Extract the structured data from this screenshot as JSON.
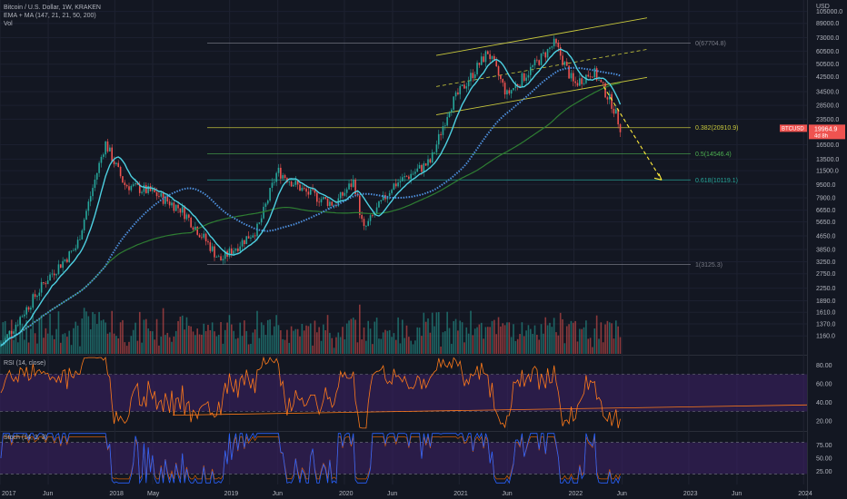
{
  "header": {
    "symbol": "Bitcoin / U.S. Dollar, 1W, KRAKEN",
    "indicators": "EMA + MA (147, 21, 21, 50, 200)",
    "volume": "Vol"
  },
  "price_axis": {
    "currency": "USD",
    "ticks": [
      "105000.0",
      "89000.0",
      "73000.0",
      "60500.0",
      "50500.0",
      "42500.0",
      "34500.0",
      "28500.0",
      "23500.0",
      "16500.0",
      "13500.0",
      "11500.0",
      "9500.0",
      "7900.0",
      "6650.0",
      "5650.0",
      "4650.0",
      "3850.0",
      "3250.0",
      "2750.0",
      "2250.0",
      "1890.0",
      "1610.0",
      "1370.0",
      "1160.0"
    ],
    "ticker_label": "BTCUSD",
    "last_price": "19964.9",
    "countdown": "4d 8h"
  },
  "fib_levels": [
    {
      "label": "0(67704.8)",
      "value": 67704.8,
      "color": "#787b86"
    },
    {
      "label": "0.382(20910.9)",
      "value": 20910.9,
      "color": "#c8c83c"
    },
    {
      "label": "0.5(14546.4)",
      "value": 14546.4,
      "color": "#4caf50"
    },
    {
      "label": "0.618(10119.1)",
      "value": 10119.1,
      "color": "#26a69a"
    },
    {
      "label": "1(3125.3)",
      "value": 3125.3,
      "color": "#787b86"
    }
  ],
  "rsi_panel": {
    "title": "RSI (14, close)",
    "ticks": [
      "80.00",
      "60.00",
      "40.00",
      "20.00"
    ]
  },
  "stoch_panel": {
    "title": "Stoch (14, 3, 3)",
    "ticks": [
      "75.00",
      "50.00",
      "25.00"
    ]
  },
  "time_axis": [
    "2017",
    "Jun",
    "2018",
    "May",
    "2019",
    "Jun",
    "2020",
    "Jun",
    "2021",
    "Jun",
    "2022",
    "Jun",
    "2023",
    "Jun",
    "2024"
  ],
  "colors": {
    "background": "#131722",
    "up": "#26a69a",
    "down": "#ef5350",
    "ema_fast": "#4dd0e1",
    "ma_dotted": "#4d8fdc",
    "ma_200": "#2e7d32",
    "rsi_line": "#ff7a1a",
    "rsi_band": "#3b1f63",
    "stoch_k": "#2962ff",
    "stoch_d": "#ff6d00",
    "channel": "#c8c83c",
    "projection": "#ffeb3b"
  },
  "chart_data": {
    "type": "candlestick",
    "title": "Bitcoin / U.S. Dollar, 1W, KRAKEN",
    "scale": "log",
    "y_unit": "USD",
    "ylim": [
      1000,
      120000
    ],
    "x_ticks": [
      "2017",
      "Jun",
      "2018",
      "May",
      "2019",
      "Jun",
      "2020",
      "Jun",
      "2021",
      "Jun",
      "2022",
      "Jun",
      "2023",
      "Jun",
      "2024"
    ],
    "price_path": [
      [
        "2017-01",
        1000
      ],
      [
        "2017-06",
        2600
      ],
      [
        "2017-09",
        4000
      ],
      [
        "2017-12",
        17000
      ],
      [
        "2018-02",
        9500
      ],
      [
        "2018-05",
        8500
      ],
      [
        "2018-08",
        6700
      ],
      [
        "2018-11",
        4000
      ],
      [
        "2018-12",
        3300
      ],
      [
        "2019-04",
        5200
      ],
      [
        "2019-06",
        11500
      ],
      [
        "2019-09",
        8500
      ],
      [
        "2019-12",
        7200
      ],
      [
        "2020-02",
        10000
      ],
      [
        "2020-03",
        5000
      ],
      [
        "2020-06",
        9300
      ],
      [
        "2020-10",
        13000
      ],
      [
        "2020-12",
        28000
      ],
      [
        "2021-04",
        60000
      ],
      [
        "2021-06",
        33000
      ],
      [
        "2021-11",
        67700
      ],
      [
        "2022-01",
        38000
      ],
      [
        "2022-03",
        46000
      ],
      [
        "2022-05",
        29000
      ],
      [
        "2022-06",
        19964.9
      ]
    ],
    "projection_target": 10119.1,
    "rsi_last": 22,
    "stoch_last": 15
  }
}
